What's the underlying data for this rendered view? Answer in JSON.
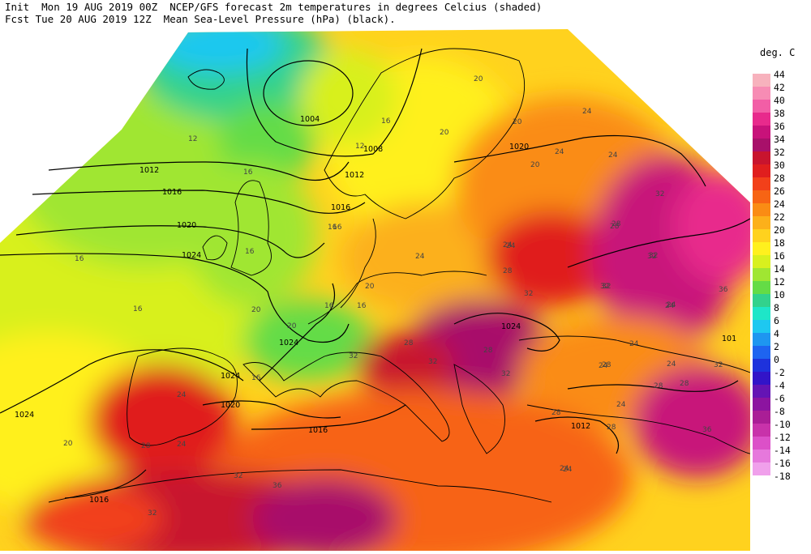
{
  "header": {
    "line1": "Init  Mon 19 AUG 2019 00Z  NCEP/GFS forecast 2m temperatures in degrees Celcius (shaded)",
    "line2": "Fcst Tue 20 AUG 2019 12Z  Mean Sea-Level Pressure (hPa) (black)."
  },
  "legend": {
    "title": "deg. C",
    "entries": [
      {
        "label": "44",
        "color": "#f7b2bd"
      },
      {
        "label": "42",
        "color": "#f78cb4"
      },
      {
        "label": "40",
        "color": "#f25ea6"
      },
      {
        "label": "38",
        "color": "#e82a8c"
      },
      {
        "label": "36",
        "color": "#c8127a"
      },
      {
        "label": "34",
        "color": "#a8106a"
      },
      {
        "label": "32",
        "color": "#c8142e"
      },
      {
        "label": "30",
        "color": "#e01e1e"
      },
      {
        "label": "28",
        "color": "#f2401a"
      },
      {
        "label": "26",
        "color": "#f76414"
      },
      {
        "label": "24",
        "color": "#fa8c14"
      },
      {
        "label": "22",
        "color": "#fcb01a"
      },
      {
        "label": "20",
        "color": "#ffd21e"
      },
      {
        "label": "18",
        "color": "#fff01e"
      },
      {
        "label": "16",
        "color": "#d8f01e"
      },
      {
        "label": "14",
        "color": "#a0e632"
      },
      {
        "label": "12",
        "color": "#64dc46"
      },
      {
        "label": "10",
        "color": "#32d28c"
      },
      {
        "label": "8",
        "color": "#1ee6c8"
      },
      {
        "label": "6",
        "color": "#1ec8f0"
      },
      {
        "label": "4",
        "color": "#1e96f0"
      },
      {
        "label": "2",
        "color": "#1e64f0"
      },
      {
        "label": "0",
        "color": "#1e32dc"
      },
      {
        "label": "-2",
        "color": "#3214c8"
      },
      {
        "label": "-4",
        "color": "#6414b4"
      },
      {
        "label": "-6",
        "color": "#8c14a0"
      },
      {
        "label": "-8",
        "color": "#aa1e96"
      },
      {
        "label": "-10",
        "color": "#c832aa"
      },
      {
        "label": "-12",
        "color": "#dc50c8"
      },
      {
        "label": "-14",
        "color": "#e678dc"
      },
      {
        "label": "-16",
        "color": "#f0a0eb"
      }
    ],
    "last_label": "-18"
  },
  "isobar_labels": [
    "1004",
    "1008",
    "1012",
    "1016",
    "1020",
    "1012",
    "1016",
    "1020",
    "1024",
    "1024",
    "1024",
    "1024",
    "1020",
    "1024",
    "1020",
    "1016",
    "1016",
    "1020",
    "1012",
    "1016",
    "1012",
    "101"
  ],
  "temperature_labels": [
    "12",
    "16",
    "12",
    "16",
    "16",
    "16",
    "20",
    "16",
    "16",
    "20",
    "20",
    "24",
    "20",
    "24",
    "20",
    "20",
    "16",
    "20",
    "16",
    "24",
    "28",
    "32",
    "24",
    "28",
    "24",
    "32",
    "32",
    "24",
    "32",
    "28",
    "28",
    "24",
    "28",
    "24",
    "24",
    "32",
    "24",
    "24",
    "28",
    "32",
    "36",
    "24",
    "28",
    "24",
    "32",
    "28",
    "32",
    "32",
    "36",
    "28",
    "28",
    "28",
    "24",
    "32",
    "24",
    "32",
    "36",
    "24",
    "32",
    "16",
    "16",
    "20"
  ]
}
